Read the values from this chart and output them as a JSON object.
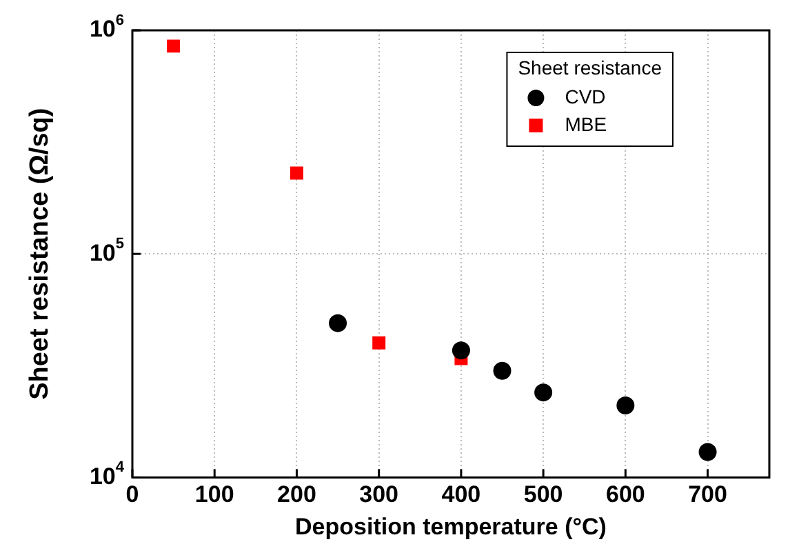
{
  "chart_data": {
    "type": "scatter",
    "xlabel": "Deposition temperature (°C)",
    "ylabel": "Sheet resistance (Ω/sq)",
    "legend_title": "Sheet resistance",
    "series": [
      {
        "name": "CVD",
        "color": "#000000",
        "marker": "circle",
        "x": [
          250,
          400,
          450,
          500,
          600,
          700
        ],
        "values": [
          49000,
          37000,
          30000,
          24000,
          21000,
          13000
        ]
      },
      {
        "name": "MBE",
        "color": "#ff0000",
        "marker": "square",
        "x": [
          50,
          200,
          300,
          400
        ],
        "values": [
          850000,
          230000,
          40000,
          34000
        ]
      }
    ],
    "xlim": [
      0,
      775
    ],
    "xticks": [
      0,
      100,
      200,
      300,
      400,
      500,
      600,
      700
    ],
    "ylim": [
      10000,
      1000000
    ],
    "yticks": [
      {
        "value": 10000,
        "label": "10$^{4}$"
      },
      {
        "value": 100000,
        "label": "10$^{5}$"
      },
      {
        "value": 1000000,
        "label": "10$^{6}$"
      }
    ],
    "log": "y",
    "grid": true,
    "legend": "top right"
  }
}
